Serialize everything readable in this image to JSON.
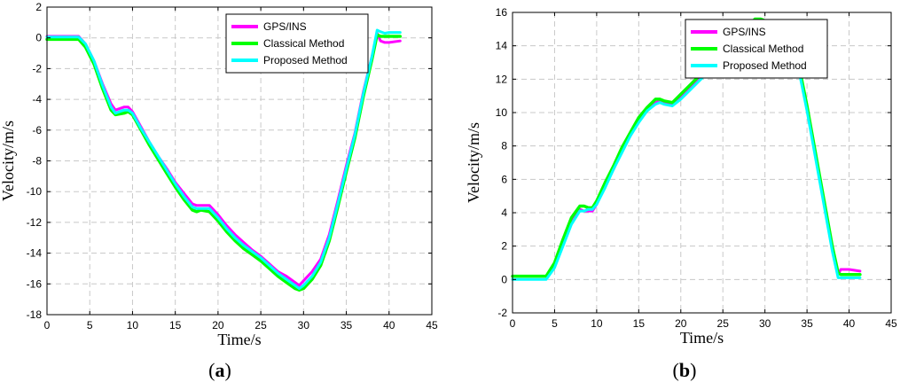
{
  "colors": {
    "gps_ins": "#ff00ff",
    "classical": "#00ff00",
    "proposed": "#00ffff"
  },
  "chart_data": [
    {
      "type": "line",
      "caption": "(a)",
      "xlabel": "Time/s",
      "ylabel": "Velocity/m/s",
      "xlim": [
        0,
        45
      ],
      "ylim": [
        -18,
        2
      ],
      "xticks": [
        0,
        5,
        10,
        15,
        20,
        25,
        30,
        35,
        40,
        45
      ],
      "yticks": [
        -18,
        -16,
        -14,
        -12,
        -10,
        -8,
        -6,
        -4,
        -2,
        0,
        2
      ],
      "grid": true,
      "legend_position": "top-right",
      "series": [
        {
          "name": "GPS/INS",
          "x": [
            0,
            2,
            3.7,
            4.5,
            5.5,
            6.5,
            7.5,
            8,
            9,
            9.5,
            10,
            11,
            12,
            13,
            14,
            15,
            16,
            17,
            17.5,
            18,
            19,
            20,
            21,
            22,
            23,
            24,
            25,
            26,
            27,
            28,
            29,
            29.5,
            30,
            31,
            32,
            33,
            34,
            35,
            36,
            37,
            38,
            38.6,
            39,
            39.5,
            40,
            41.3
          ],
          "y": [
            0.1,
            0.1,
            0.1,
            -0.4,
            -1.5,
            -3,
            -4.3,
            -4.7,
            -4.5,
            -4.5,
            -4.8,
            -5.8,
            -6.8,
            -7.7,
            -8.5,
            -9.4,
            -10.1,
            -10.8,
            -10.9,
            -10.9,
            -10.9,
            -11.5,
            -12.2,
            -12.8,
            -13.3,
            -13.8,
            -14.2,
            -14.7,
            -15.2,
            -15.5,
            -15.9,
            -16.1,
            -15.8,
            -15.2,
            -14.4,
            -12.8,
            -10.6,
            -8.3,
            -6.2,
            -3.5,
            -1.2,
            0.3,
            -0.2,
            -0.3,
            -0.3,
            -0.2
          ]
        },
        {
          "name": "Classical Method",
          "x": [
            0,
            2,
            3.7,
            4.5,
            5.5,
            6.5,
            7.5,
            8,
            9,
            9.5,
            10,
            11,
            12,
            13,
            14,
            15,
            16,
            17,
            17.5,
            18,
            19,
            20,
            21,
            22,
            23,
            24,
            25,
            26,
            27,
            28,
            29,
            29.5,
            30,
            31,
            32,
            33,
            34,
            35,
            36,
            37,
            38,
            38.6,
            39,
            39.5,
            40,
            41.3
          ],
          "y": [
            -0.1,
            -0.1,
            -0.1,
            -0.6,
            -1.7,
            -3.3,
            -4.7,
            -5,
            -4.9,
            -4.8,
            -5,
            -6,
            -7,
            -7.9,
            -8.8,
            -9.7,
            -10.5,
            -11.2,
            -11.3,
            -11.2,
            -11.3,
            -11.9,
            -12.6,
            -13.2,
            -13.7,
            -14.1,
            -14.5,
            -15,
            -15.5,
            -15.9,
            -16.3,
            -16.4,
            -16.3,
            -15.7,
            -14.8,
            -13.2,
            -11,
            -8.7,
            -6.5,
            -3.8,
            -1.4,
            0.2,
            0.1,
            0.1,
            0.1,
            0.1
          ]
        },
        {
          "name": "Proposed Method",
          "x": [
            0,
            2,
            3.7,
            4.5,
            5.5,
            6.5,
            7.5,
            8,
            9,
            9.5,
            10,
            11,
            12,
            13,
            14,
            15,
            16,
            17,
            17.5,
            18,
            19,
            20,
            21,
            22,
            23,
            24,
            25,
            26,
            27,
            28,
            29,
            29.5,
            30,
            31,
            32,
            33,
            34,
            35,
            36,
            37,
            38,
            38.6,
            39,
            39.5,
            40,
            41.3
          ],
          "y": [
            0.05,
            0.05,
            0.05,
            -0.4,
            -1.5,
            -3.1,
            -4.5,
            -4.9,
            -4.7,
            -4.7,
            -4.9,
            -5.9,
            -6.8,
            -7.7,
            -8.6,
            -9.5,
            -10.3,
            -11,
            -11.1,
            -11.1,
            -11.1,
            -11.7,
            -12.4,
            -13,
            -13.5,
            -13.9,
            -14.3,
            -14.8,
            -15.3,
            -15.7,
            -16.1,
            -16.3,
            -16.1,
            -15.5,
            -14.6,
            -13,
            -10.8,
            -8.5,
            -6.3,
            -3.6,
            -1.2,
            0.5,
            0.4,
            0.3,
            0.35,
            0.35
          ]
        }
      ]
    },
    {
      "type": "line",
      "caption": "(b)",
      "xlabel": "Time/s",
      "ylabel": "Velocity/m/s",
      "xlim": [
        0,
        45
      ],
      "ylim": [
        -2,
        16
      ],
      "xticks": [
        0,
        5,
        10,
        15,
        20,
        25,
        30,
        35,
        40,
        45
      ],
      "yticks": [
        -2,
        0,
        2,
        4,
        6,
        8,
        10,
        12,
        14,
        16
      ],
      "grid": true,
      "legend_position": "top-right",
      "series": [
        {
          "name": "GPS/INS",
          "x": [
            0,
            2,
            4,
            5,
            6,
            7,
            8,
            8.5,
            9,
            9.5,
            10,
            11,
            12,
            13,
            14,
            15,
            16,
            17,
            17.5,
            18,
            19,
            20,
            21,
            22,
            23,
            24,
            25,
            26,
            27,
            28,
            28.8,
            29.5,
            30,
            31,
            32,
            33,
            34,
            35,
            36,
            37,
            38,
            38.7,
            39,
            40,
            41.3
          ],
          "y": [
            0.2,
            0.2,
            0.2,
            0.9,
            2.2,
            3.5,
            4.2,
            4.1,
            4.1,
            4.1,
            4.5,
            5.6,
            6.6,
            7.7,
            8.6,
            9.5,
            10.1,
            10.6,
            10.7,
            10.6,
            10.5,
            11,
            11.4,
            11.9,
            12.4,
            13,
            13.5,
            13.9,
            14.3,
            14.8,
            15.4,
            15.5,
            15.4,
            15.2,
            15,
            14.5,
            12.8,
            10.3,
            7.5,
            4.7,
            1.9,
            0.3,
            0.6,
            0.6,
            0.5
          ]
        },
        {
          "name": "Classical Method",
          "x": [
            0,
            2,
            4,
            5,
            6,
            7,
            8,
            8.5,
            9,
            9.5,
            10,
            11,
            12,
            13,
            14,
            15,
            16,
            17,
            17.5,
            18,
            19,
            20,
            21,
            22,
            23,
            24,
            25,
            26,
            27,
            28,
            28.8,
            29.5,
            30,
            31,
            32,
            33,
            34,
            35,
            36,
            37,
            38,
            38.7,
            39,
            40,
            41.3
          ],
          "y": [
            0.2,
            0.2,
            0.2,
            1,
            2.4,
            3.7,
            4.4,
            4.4,
            4.3,
            4.3,
            4.7,
            5.8,
            6.8,
            7.9,
            8.8,
            9.7,
            10.3,
            10.8,
            10.8,
            10.7,
            10.6,
            11.1,
            11.6,
            12.1,
            12.6,
            13.2,
            13.7,
            14.1,
            14.5,
            15,
            15.6,
            15.6,
            15.5,
            15.3,
            15.1,
            14.6,
            12.9,
            10.4,
            7.6,
            4.8,
            2,
            0.4,
            0.3,
            0.3,
            0.3
          ]
        },
        {
          "name": "Proposed Method",
          "x": [
            0,
            2,
            4,
            5,
            6,
            7,
            8,
            8.5,
            9,
            9.5,
            10,
            11,
            12,
            13,
            14,
            15,
            16,
            17,
            17.5,
            18,
            19,
            20,
            21,
            22,
            23,
            24,
            25,
            26,
            27,
            28,
            28.8,
            29.5,
            30,
            31,
            32,
            33,
            34,
            35,
            36,
            37,
            38,
            38.7,
            39,
            40,
            41.3
          ],
          "y": [
            0,
            0,
            0,
            0.7,
            2,
            3.3,
            4.1,
            4.1,
            4.2,
            4.2,
            4.5,
            5.5,
            6.6,
            7.6,
            8.6,
            9.4,
            10.1,
            10.5,
            10.6,
            10.5,
            10.4,
            10.8,
            11.3,
            11.8,
            12.3,
            12.9,
            13.4,
            13.8,
            14.2,
            14.7,
            15.3,
            15.4,
            15.3,
            15.1,
            14.9,
            14.4,
            12.6,
            10.1,
            7.3,
            4.5,
            1.7,
            0.1,
            0.1,
            0.1,
            0.1
          ]
        }
      ]
    }
  ]
}
